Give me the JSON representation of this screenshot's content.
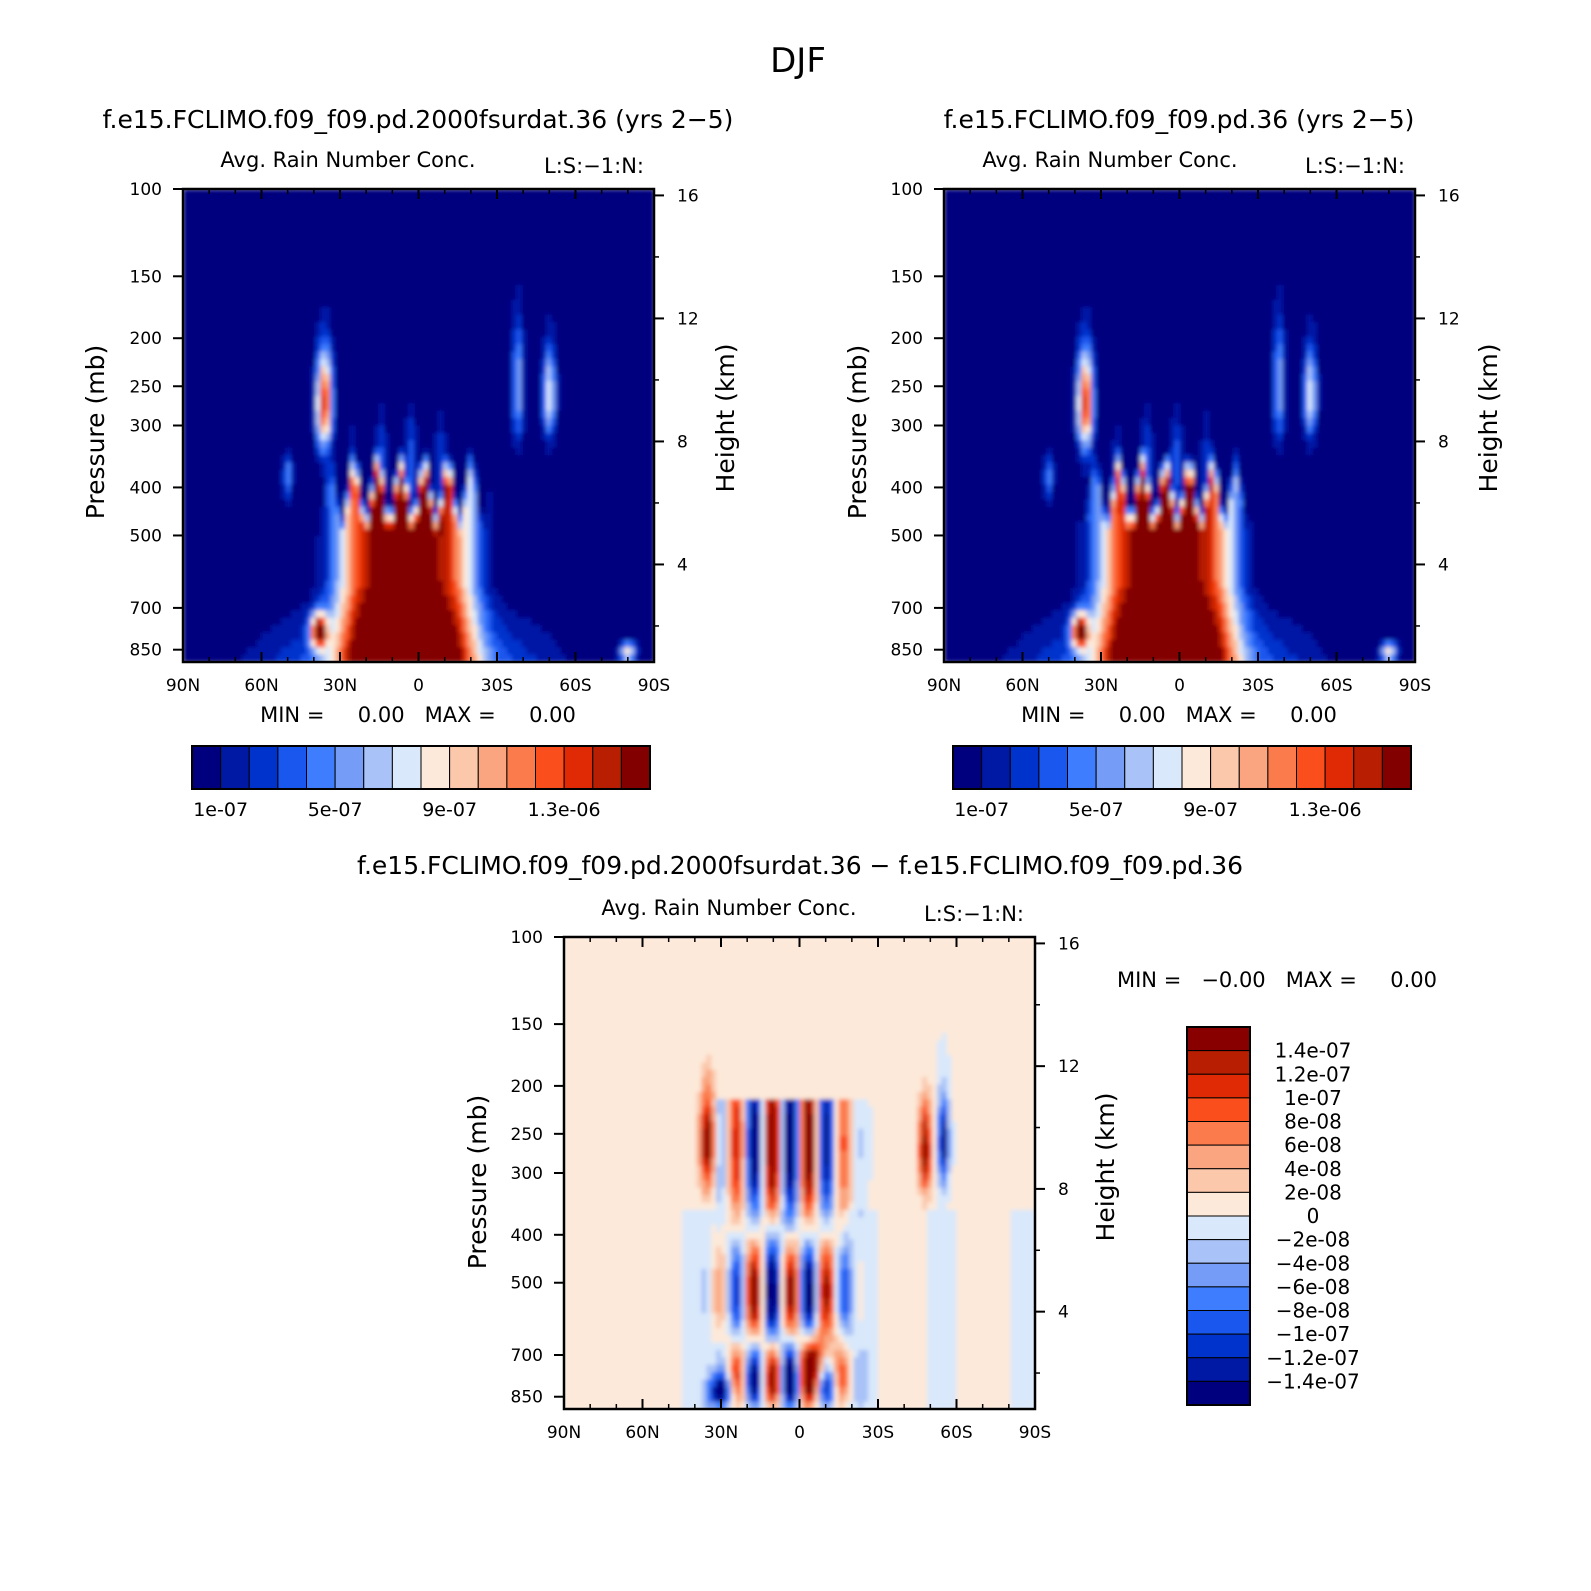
{
  "page": {
    "title": "DJF"
  },
  "colors": {
    "seq": [
      "#00007f",
      "#0019a5",
      "#0033cc",
      "#1a57ee",
      "#3e7dfe",
      "#759cf6",
      "#a9c2f7",
      "#d9e8fb",
      "#fde9d9",
      "#fbc8ac",
      "#faa57f",
      "#fc7b4c",
      "#fa4f1c",
      "#e02a05",
      "#b81e01",
      "#830000"
    ],
    "diff": [
      "#880000",
      "#b81e01",
      "#e02a05",
      "#fa4f1c",
      "#fc7b4c",
      "#faa57f",
      "#fbc8ac",
      "#fde9d9",
      "#d9e8fb",
      "#a9c2f7",
      "#759cf6",
      "#3e7dfe",
      "#1a57ee",
      "#0033cc",
      "#0019a5",
      "#00007f"
    ]
  },
  "panels": [
    {
      "title": "f.e15.FCLIMO.f09_f09.pd.2000fsurdat.36 (yrs 2−5)",
      "subtitle": "Avg. Rain Number Conc.",
      "corner": "L:S:−1:N:",
      "minmax": "MIN =     0.00   MAX =     0.00"
    },
    {
      "title": "f.e15.FCLIMO.f09_f09.pd.36 (yrs 2−5)",
      "subtitle": "Avg. Rain Number Conc.",
      "corner": "L:S:−1:N:",
      "minmax": "MIN =     0.00   MAX =     0.00"
    },
    {
      "title": "f.e15.FCLIMO.f09_f09.pd.2000fsurdat.36 − f.e15.FCLIMO.f09_f09.pd.36",
      "subtitle": "Avg. Rain Number Conc.",
      "corner": "L:S:−1:N:",
      "minmax": "MIN =   −0.00   MAX =     0.00"
    }
  ],
  "chart_data": [
    {
      "type": "heatmap",
      "title": "Avg. Rain Number Conc.",
      "ylabel": "Pressure (mb)",
      "ylabel_right": "Height (km)",
      "x_ticks": [
        "90N",
        "60N",
        "30N",
        "0",
        "30S",
        "60S",
        "90S"
      ],
      "y_ticks": [
        "100",
        "150",
        "200",
        "250",
        "300",
        "400",
        "500",
        "700",
        "850"
      ],
      "y_right_ticks": [
        "16",
        "12",
        "8",
        "4"
      ],
      "ylim": [
        900,
        100
      ],
      "legend_labels": [
        "1e-07",
        "5e-07",
        "9e-07",
        "1.3e-06"
      ],
      "levels": [
        1e-07,
        2e-07,
        3e-07,
        4e-07,
        5e-07,
        6e-07,
        7e-07,
        8e-07,
        9e-07,
        1e-06,
        1.1e-06,
        1.2e-06,
        1.3e-06,
        1.4e-06,
        1.5e-06
      ]
    },
    {
      "type": "heatmap",
      "title": "Avg. Rain Number Conc.",
      "ylabel": "Pressure (mb)",
      "ylabel_right": "Height (km)",
      "x_ticks": [
        "90N",
        "60N",
        "30N",
        "0",
        "30S",
        "60S",
        "90S"
      ],
      "y_ticks": [
        "100",
        "150",
        "200",
        "250",
        "300",
        "400",
        "500",
        "700",
        "850"
      ],
      "y_right_ticks": [
        "16",
        "12",
        "8",
        "4"
      ],
      "ylim": [
        900,
        100
      ],
      "legend_labels": [
        "1e-07",
        "5e-07",
        "9e-07",
        "1.3e-06"
      ],
      "levels": [
        1e-07,
        2e-07,
        3e-07,
        4e-07,
        5e-07,
        6e-07,
        7e-07,
        8e-07,
        9e-07,
        1e-06,
        1.1e-06,
        1.2e-06,
        1.3e-06,
        1.4e-06,
        1.5e-06
      ]
    },
    {
      "type": "heatmap",
      "title": "Avg. Rain Number Conc.",
      "ylabel": "Pressure (mb)",
      "ylabel_right": "Height (km)",
      "x_ticks": [
        "90N",
        "60N",
        "30N",
        "0",
        "30S",
        "60S",
        "90S"
      ],
      "y_ticks": [
        "100",
        "150",
        "200",
        "250",
        "300",
        "400",
        "500",
        "700",
        "850"
      ],
      "y_right_ticks": [
        "16",
        "12",
        "8",
        "4"
      ],
      "ylim": [
        900,
        100
      ],
      "legend_labels": [
        "1.4e-07",
        "1.2e-07",
        "1e-07",
        "8e-08",
        "6e-08",
        "4e-08",
        "2e-08",
        "0",
        "−2e-08",
        "−4e-08",
        "−6e-08",
        "−8e-08",
        "−1e-07",
        "−1.2e-07",
        "−1.4e-07"
      ]
    }
  ]
}
